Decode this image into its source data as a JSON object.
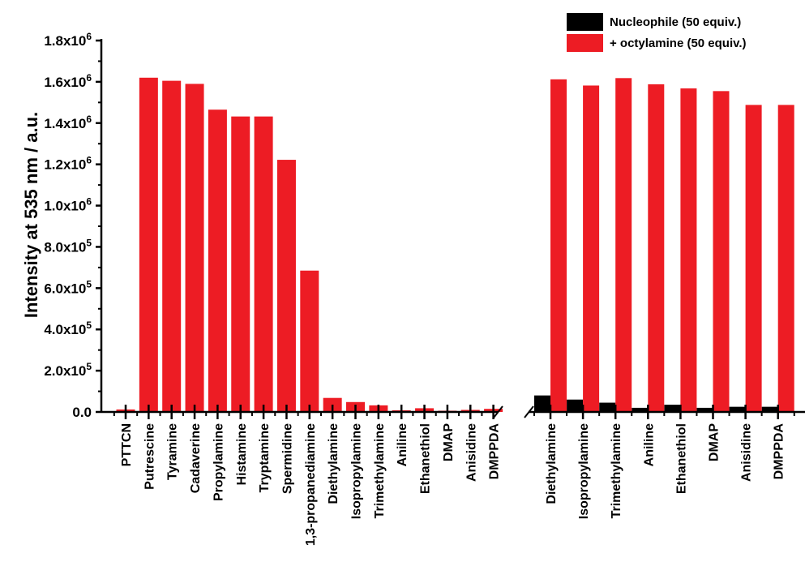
{
  "chart_data": {
    "type": "bar",
    "ylabel": "Intensity at 535 nm / a.u.",
    "ylim": [
      0,
      1800000
    ],
    "yticks": [
      {
        "value": 0,
        "mant": "0.0",
        "exp": ""
      },
      {
        "value": 200000,
        "mant": "2.0x10",
        "exp": "5"
      },
      {
        "value": 400000,
        "mant": "4.0x10",
        "exp": "5"
      },
      {
        "value": 600000,
        "mant": "6.0x10",
        "exp": "5"
      },
      {
        "value": 800000,
        "mant": "8.0x10",
        "exp": "5"
      },
      {
        "value": 1000000,
        "mant": "1.0x10",
        "exp": "6"
      },
      {
        "value": 1200000,
        "mant": "1.2x10",
        "exp": "6"
      },
      {
        "value": 1400000,
        "mant": "1.4x10",
        "exp": "6"
      },
      {
        "value": 1600000,
        "mant": "1.6x10",
        "exp": "6"
      },
      {
        "value": 1800000,
        "mant": "1.8x10",
        "exp": "6"
      }
    ],
    "legend": [
      {
        "name": "Nucleophile (50 equiv.)",
        "color": "#000000"
      },
      {
        "name": "+ octylamine (50 equiv.)",
        "color": "#ed1c24"
      }
    ],
    "legend_position": "top-right",
    "panels": [
      {
        "categories": [
          "PTTCN",
          "Putrescine",
          "Tyramine",
          "Cadaverine",
          "Propylamine",
          "Histamine",
          "Tryptamine",
          "Spermidine",
          "1,3-propanediamine",
          "Diethylamine",
          "Isopropylamine",
          "Trimethylamine",
          "Aniline",
          "Ethanethiol",
          "DMAP",
          "Anisidine",
          "DMPPDA"
        ],
        "series": [
          {
            "name": "+ octylamine (50 equiv.)",
            "color": "#ed1c24",
            "values": [
              12000,
              1620000,
              1605000,
              1590000,
              1465000,
              1432000,
              1432000,
              1222000,
              685000,
              68000,
              48000,
              32000,
              8000,
              18000,
              6000,
              10000,
              15000
            ]
          }
        ]
      },
      {
        "categories": [
          "Diethylamine",
          "Isopropylamine",
          "Trimethylamine",
          "Aniline",
          "Ethanethiol",
          "DMAP",
          "Anisidine",
          "DMPPDA"
        ],
        "series": [
          {
            "name": "Nucleophile (50 equiv.)",
            "color": "#000000",
            "values": [
              80000,
              60000,
              45000,
              20000,
              35000,
              20000,
              25000,
              25000
            ]
          },
          {
            "name": "+ octylamine (50 equiv.)",
            "color": "#ed1c24",
            "values": [
              1612000,
              1582000,
              1618000,
              1588000,
              1568000,
              1555000,
              1488000,
              1488000
            ]
          }
        ]
      }
    ]
  }
}
